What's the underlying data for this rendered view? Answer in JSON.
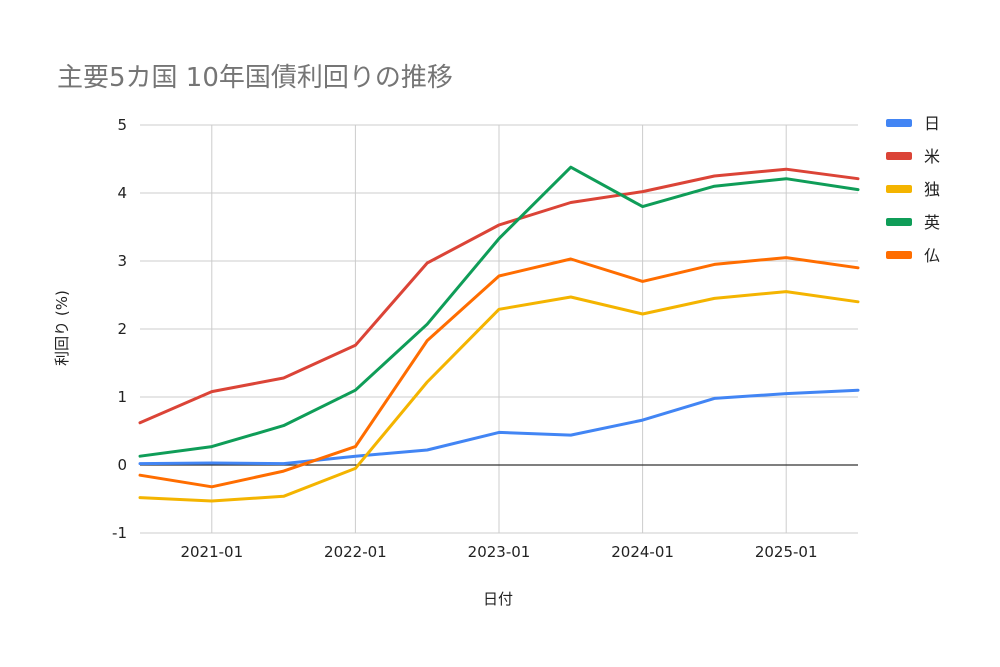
{
  "chart_data": {
    "type": "line",
    "title": "主要5カ国 10年国債利回りの推移",
    "xlabel": "日付",
    "ylabel": "利回り (%)",
    "ylim": [
      -1,
      5
    ],
    "yticks": [
      {
        "value": -1,
        "label": "-1"
      },
      {
        "value": 0,
        "label": "0"
      },
      {
        "value": 1,
        "label": "1"
      },
      {
        "value": 2,
        "label": "2"
      },
      {
        "value": 3,
        "label": "3"
      },
      {
        "value": 4,
        "label": "4"
      },
      {
        "value": 5,
        "label": "5"
      }
    ],
    "xlim": [
      2020.5,
      2025.5
    ],
    "xticks": [
      {
        "value": 2021,
        "label": "2021-01"
      },
      {
        "value": 2022,
        "label": "2022-01"
      },
      {
        "value": 2023,
        "label": "2023-01"
      },
      {
        "value": 2024,
        "label": "2024-01"
      },
      {
        "value": 2025,
        "label": "2025-01"
      }
    ],
    "x": [
      2020.5,
      2021.0,
      2021.5,
      2022.0,
      2022.5,
      2023.0,
      2023.5,
      2024.0,
      2024.5,
      2025.0,
      2025.5
    ],
    "legend_position": "right",
    "series": [
      {
        "name": "日",
        "color": "#4285f4",
        "values": [
          0.02,
          0.03,
          0.02,
          0.13,
          0.22,
          0.48,
          0.44,
          0.66,
          0.98,
          1.05,
          1.1
        ]
      },
      {
        "name": "米",
        "color": "#db4437",
        "values": [
          0.62,
          1.08,
          1.28,
          1.76,
          2.97,
          3.53,
          3.86,
          4.02,
          4.25,
          4.35,
          4.21
        ]
      },
      {
        "name": "独",
        "color": "#f4b400",
        "values": [
          -0.48,
          -0.53,
          -0.46,
          -0.05,
          1.22,
          2.29,
          2.47,
          2.22,
          2.45,
          2.55,
          2.4
        ]
      },
      {
        "name": "英",
        "color": "#0f9d58",
        "values": [
          0.13,
          0.27,
          0.58,
          1.1,
          2.07,
          3.33,
          4.38,
          3.8,
          4.1,
          4.21,
          4.05
        ]
      },
      {
        "name": "仏",
        "color": "#ff6d00",
        "values": [
          -0.15,
          -0.32,
          -0.09,
          0.27,
          1.83,
          2.78,
          3.03,
          2.7,
          2.95,
          3.05,
          2.9
        ]
      }
    ]
  }
}
